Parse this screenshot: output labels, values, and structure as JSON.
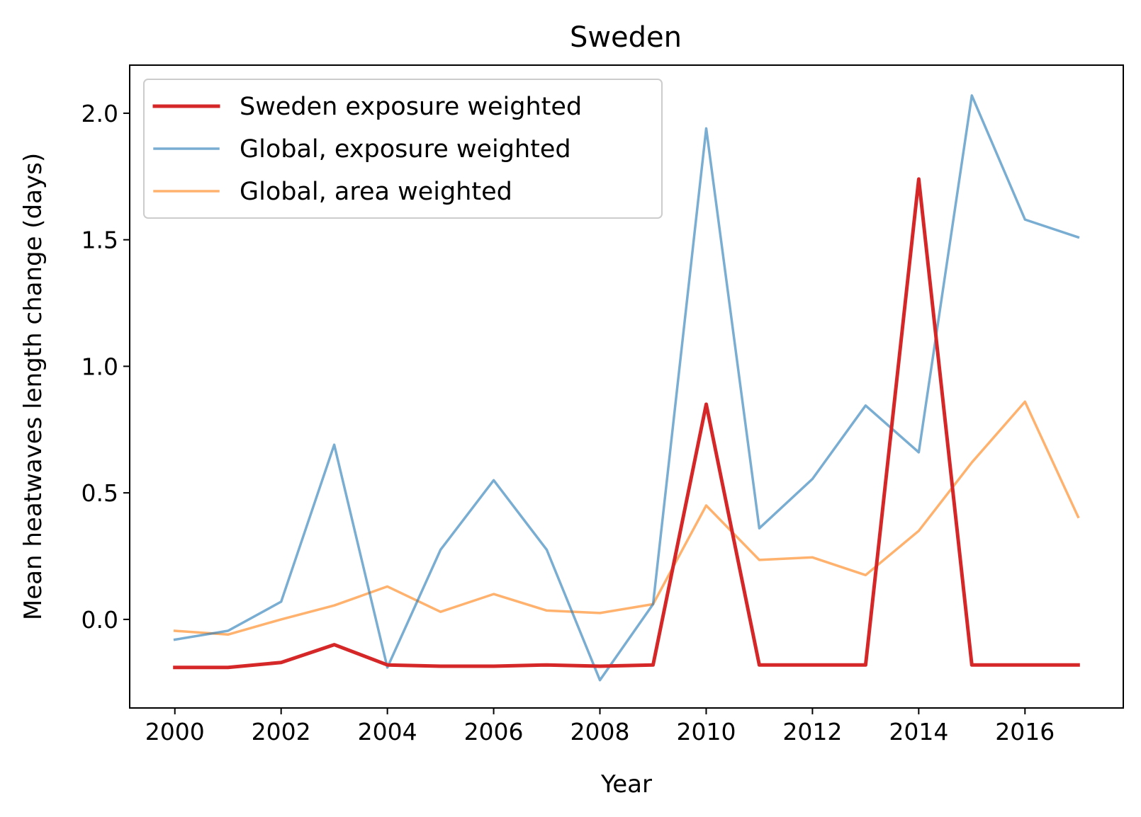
{
  "chart_data": {
    "type": "line",
    "title": "Sweden",
    "xlabel": "Year",
    "ylabel": "Mean heatwaves length change (days)",
    "x": [
      2000,
      2001,
      2002,
      2003,
      2004,
      2005,
      2006,
      2007,
      2008,
      2009,
      2010,
      2011,
      2012,
      2013,
      2014,
      2015,
      2016,
      2017
    ],
    "xticks": [
      2000,
      2002,
      2004,
      2006,
      2008,
      2010,
      2012,
      2014,
      2016
    ],
    "xtick_labels": [
      "2000",
      "2002",
      "2004",
      "2006",
      "2008",
      "2010",
      "2012",
      "2014",
      "2016"
    ],
    "yticks": [
      0.0,
      0.5,
      1.0,
      1.5,
      2.0
    ],
    "ytick_labels": [
      "0.0",
      "0.5",
      "1.0",
      "1.5",
      "2.0"
    ],
    "xlim": [
      1999.15,
      2017.85
    ],
    "ylim": [
      -0.35,
      2.19
    ],
    "grid": false,
    "legend_position": "upper-left",
    "series": [
      {
        "name": "Sweden exposure weighted",
        "color": "#d62728",
        "values": [
          -0.19,
          -0.19,
          -0.17,
          -0.1,
          -0.18,
          -0.185,
          -0.185,
          -0.18,
          -0.185,
          -0.18,
          0.85,
          -0.18,
          -0.18,
          -0.18,
          1.74,
          -0.18,
          -0.18,
          -0.18
        ]
      },
      {
        "name": "Global, exposure weighted",
        "color": "#1f77b4",
        "values": [
          -0.08,
          -0.045,
          0.07,
          0.69,
          -0.19,
          0.275,
          0.55,
          0.275,
          -0.24,
          0.06,
          1.94,
          0.36,
          0.555,
          0.845,
          0.66,
          2.07,
          1.58,
          1.51
        ]
      },
      {
        "name": "Global, area weighted",
        "color": "#ff7f0e",
        "values": [
          -0.045,
          -0.06,
          0.0,
          0.055,
          0.13,
          0.03,
          0.1,
          0.035,
          0.025,
          0.06,
          0.45,
          0.235,
          0.245,
          0.175,
          0.35,
          0.62,
          0.86,
          0.405
        ]
      }
    ]
  }
}
